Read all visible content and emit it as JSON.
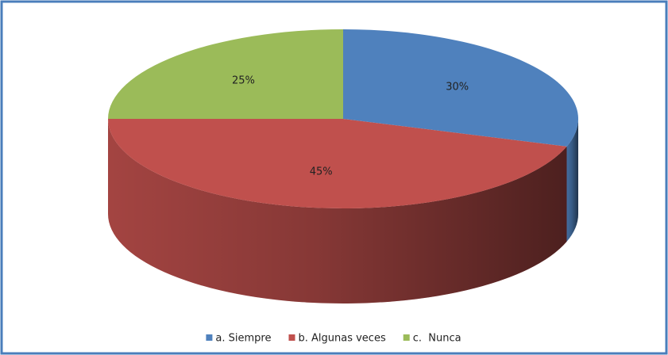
{
  "chart_data": {
    "type": "pie",
    "categories": [
      "a. Siempre",
      "b. Algunas veces",
      "c.  Nunca"
    ],
    "values": [
      30,
      45,
      25
    ],
    "value_labels": [
      "30%",
      "45%",
      "25%"
    ],
    "colors": [
      "#4f81bd",
      "#c0504d",
      "#9bbb59"
    ],
    "legend": "bottom"
  }
}
